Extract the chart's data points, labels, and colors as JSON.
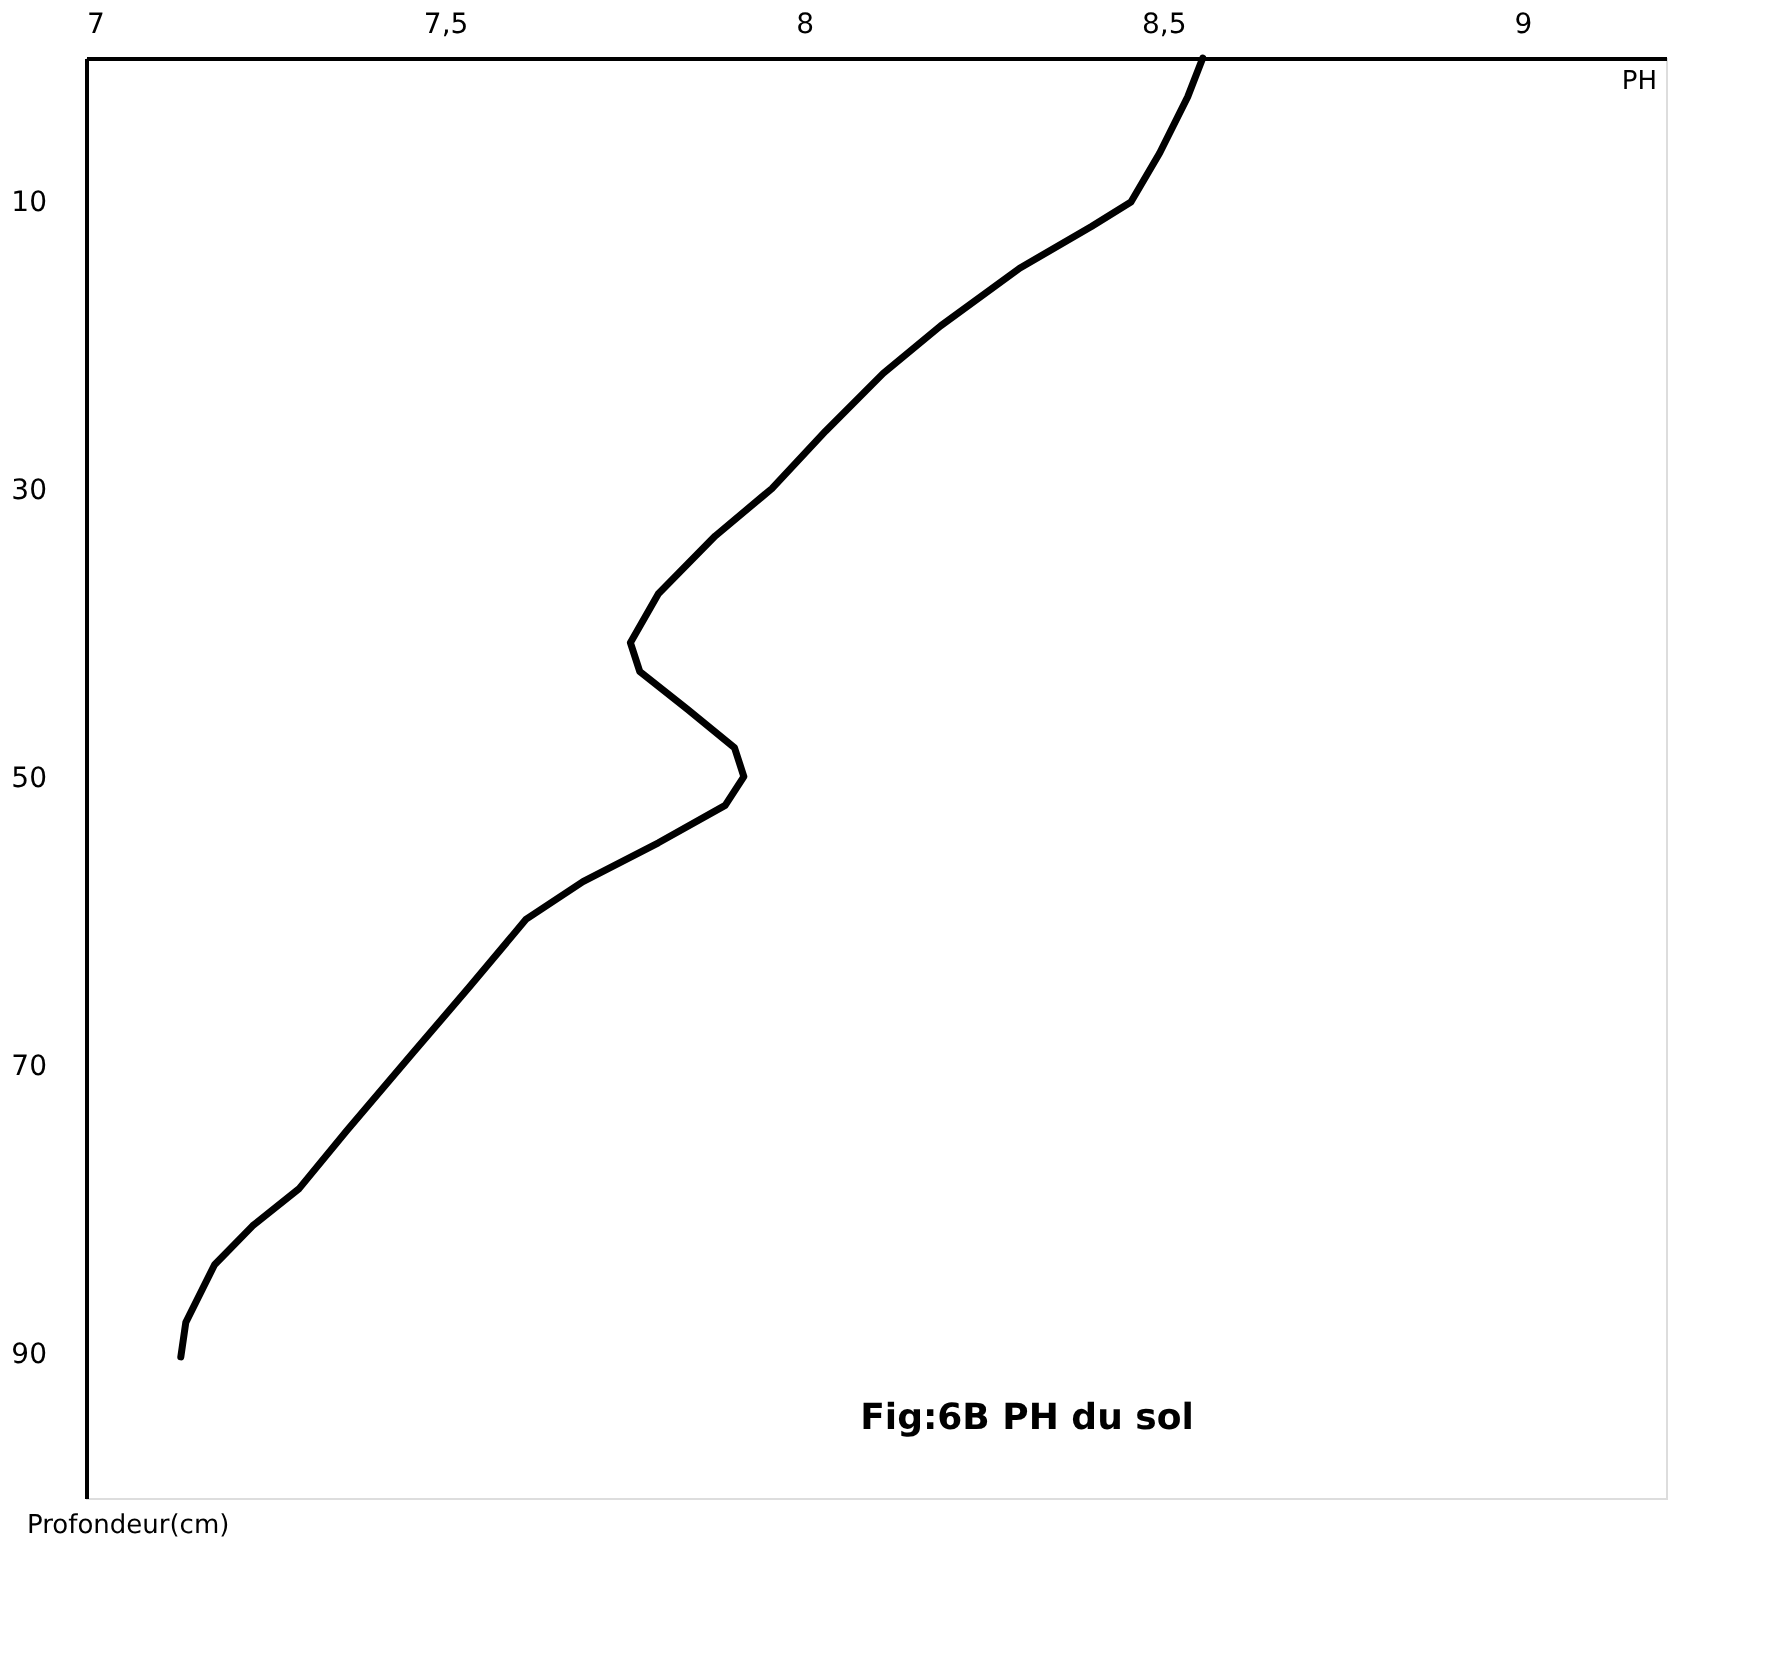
{
  "chart_data": {
    "type": "line",
    "xlabel": "PH",
    "ylabel": "Profondeur(cm)",
    "annotations": [
      "Fig:6B PH du sol"
    ],
    "xlim": [
      7,
      9.2
    ],
    "xticks": [
      7,
      {
        "value": 7.5,
        "label": "7,5"
      },
      8,
      {
        "value": 8.5,
        "label": "8,5"
      },
      9
    ],
    "ylim": [
      100,
      0
    ],
    "yticks": [
      10,
      30,
      50,
      70,
      90
    ],
    "grid": false,
    "line_style": "solid",
    "series": [
      {
        "color": "#000000",
        "x": [
          8.555,
          8.534,
          8.495,
          8.455,
          8.4,
          8.3,
          8.19,
          8.11,
          8.03,
          7.955,
          7.876,
          7.797,
          7.758,
          7.771,
          7.837,
          7.903,
          7.916,
          7.89,
          7.797,
          7.692,
          7.613,
          7.534,
          7.455,
          7.363,
          7.297,
          7.232,
          7.179,
          7.139,
          7.132
        ],
        "values": [
          0,
          2.7,
          6.6,
          10,
          11.7,
          14.6,
          18.6,
          21.9,
          25.9,
          29.9,
          33.2,
          37.2,
          40.6,
          42.6,
          45.2,
          47.9,
          49.9,
          51.9,
          54.5,
          57.2,
          59.8,
          64.5,
          69.1,
          74.5,
          78.5,
          81.1,
          83.8,
          87.8,
          90.2
        ]
      }
    ]
  }
}
